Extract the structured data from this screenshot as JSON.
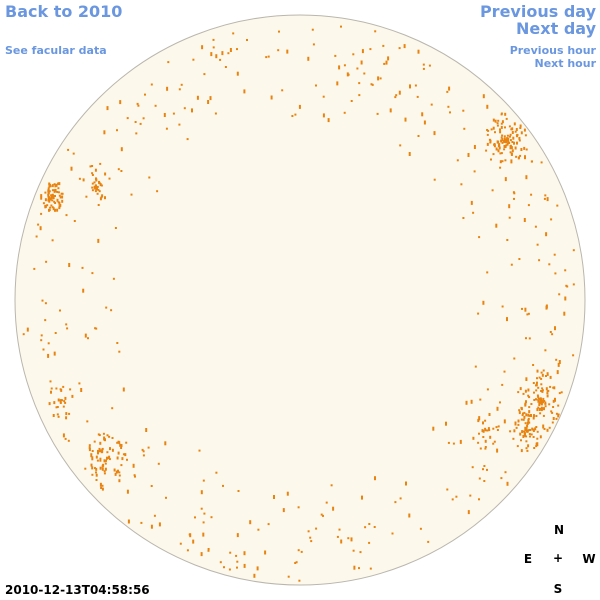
{
  "nav": {
    "back_label": "Back to 2010",
    "facular_label": "See facular data",
    "prev_day_label": "Previous day",
    "next_day_label": "Next day",
    "prev_hour_label": "Previous hour",
    "next_hour_label": "Next hour"
  },
  "timestamp": "2010-12-13T04:58:56",
  "compass": {
    "north": "N",
    "east": "E",
    "center": "+",
    "west": "W",
    "south": "S"
  },
  "colors": {
    "link": "#6a97df",
    "disk_fill": "#fdf8ec",
    "disk_stroke": "#b9b6ae",
    "feature": "#e8830f"
  }
}
